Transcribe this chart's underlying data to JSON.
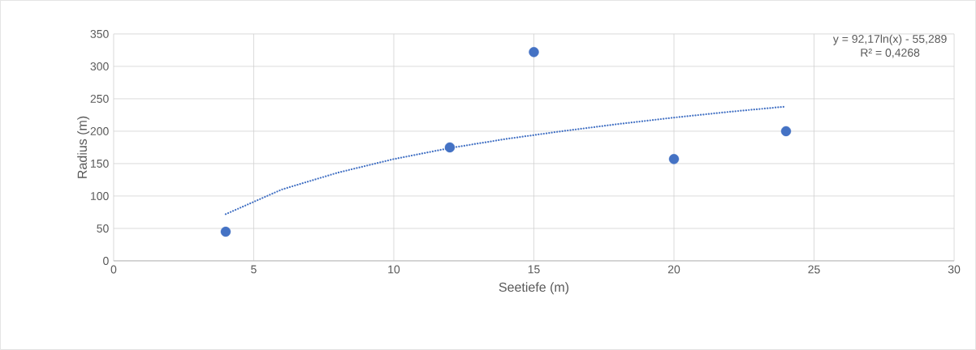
{
  "chart_data": {
    "type": "scatter",
    "xlabel": "Seetiefe (m)",
    "ylabel": "Radius (m)",
    "xlim": [
      0,
      30
    ],
    "xticks": [
      0,
      5,
      10,
      15,
      20,
      25,
      30
    ],
    "ylim": [
      0,
      350
    ],
    "yticks": [
      0,
      50,
      100,
      150,
      200,
      250,
      300,
      350
    ],
    "grid": true,
    "marker": "circle",
    "series": [
      {
        "color": "#4472c4",
        "x": [
          4,
          12,
          15,
          20,
          24
        ],
        "values": [
          45,
          175,
          322,
          157,
          200
        ]
      },
      {
        "type": "line",
        "color": "#4472c4",
        "marker": "none",
        "line_style": "dotted",
        "x": [
          4,
          6,
          8,
          10,
          12,
          14,
          16,
          18,
          20,
          22,
          24
        ],
        "values": [
          72,
          110,
          136,
          157,
          174,
          188,
          200,
          211,
          221,
          230,
          238
        ]
      }
    ],
    "annotations": [
      "y = 92,17ln(x) - 55,289",
      "R² = 0,4268"
    ]
  }
}
